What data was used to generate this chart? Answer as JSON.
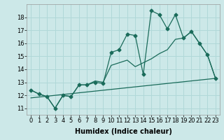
{
  "xlabel": "Humidex (Indice chaleur)",
  "background_color": "#cce8e8",
  "grid_color": "#b0d8d8",
  "line_color": "#1a6b5a",
  "xlim": [
    -0.5,
    23.5
  ],
  "ylim": [
    10.5,
    19.0
  ],
  "yticks": [
    11,
    12,
    13,
    14,
    15,
    16,
    17,
    18
  ],
  "xticks": [
    0,
    1,
    2,
    3,
    4,
    5,
    6,
    7,
    8,
    9,
    10,
    11,
    12,
    13,
    14,
    15,
    16,
    17,
    18,
    19,
    20,
    21,
    22,
    23
  ],
  "series1_x": [
    0,
    1,
    2,
    3,
    4,
    5,
    6,
    7,
    8,
    9,
    10,
    11,
    12,
    13,
    14,
    15,
    16,
    17,
    18,
    19,
    20,
    21,
    22,
    23
  ],
  "series1_y": [
    12.4,
    12.1,
    11.9,
    11.0,
    12.0,
    11.9,
    12.8,
    12.8,
    13.0,
    12.9,
    15.3,
    15.5,
    16.7,
    16.6,
    13.6,
    18.5,
    18.2,
    17.1,
    18.2,
    16.4,
    16.9,
    16.0,
    15.1,
    13.3
  ],
  "series2_x": [
    0,
    1,
    2,
    3,
    4,
    5,
    6,
    7,
    8,
    9,
    10,
    11,
    12,
    13,
    14,
    15,
    16,
    17,
    18,
    19,
    20,
    21,
    22,
    23
  ],
  "series2_y": [
    12.4,
    12.1,
    11.9,
    11.0,
    12.0,
    11.9,
    12.8,
    12.8,
    13.1,
    13.0,
    14.3,
    14.5,
    14.7,
    14.2,
    14.5,
    14.8,
    15.2,
    15.5,
    16.3,
    16.4,
    16.9,
    16.0,
    15.1,
    13.3
  ],
  "series3_x": [
    0,
    23
  ],
  "series3_y": [
    11.8,
    13.3
  ],
  "fontsize_axis": 6,
  "marker_size": 2.5
}
